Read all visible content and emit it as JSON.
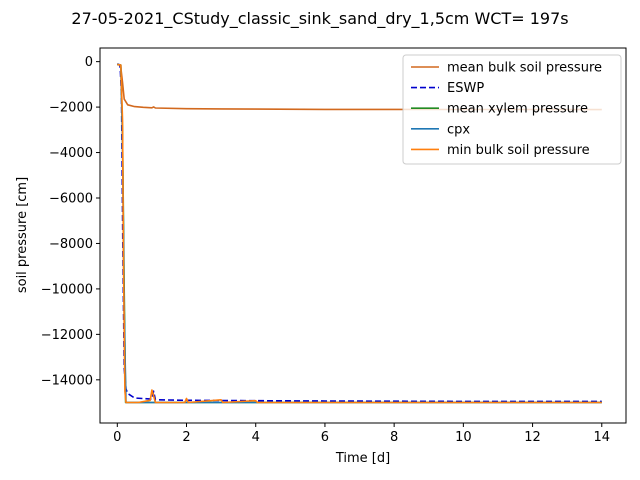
{
  "chart_data": {
    "type": "line",
    "title": "27-05-2021_CStudy_classic_sink_sand_dry_1,5cm  WCT= 197s",
    "xlabel": "Time [d]",
    "ylabel": "soil pressure [cm]",
    "xlim": [
      -0.5,
      14.7
    ],
    "ylim": [
      -15900,
      600
    ],
    "xticks": [
      0,
      2,
      4,
      6,
      8,
      10,
      12,
      14
    ],
    "yticks": [
      0,
      -2000,
      -4000,
      -6000,
      -8000,
      -10000,
      -12000,
      -14000
    ],
    "xtick_labels": [
      "0",
      "2",
      "4",
      "6",
      "8",
      "10",
      "12",
      "14"
    ],
    "ytick_labels": [
      "0",
      "−2000",
      "−4000",
      "−6000",
      "−8000",
      "−10000",
      "−12000",
      "−14000"
    ],
    "grid": false,
    "legend_position": "top-right",
    "series": [
      {
        "name": "mean bulk soil pressure",
        "color": "#d2691e",
        "style": "solid",
        "x": [
          0,
          0.05,
          0.1,
          0.15,
          0.2,
          0.3,
          0.5,
          0.75,
          1.0,
          1.05,
          1.1,
          2,
          3,
          4,
          6,
          8,
          10,
          12,
          14
        ],
        "y": [
          -120,
          -140,
          -250,
          -900,
          -1650,
          -1900,
          -1980,
          -2010,
          -2030,
          -1990,
          -2040,
          -2070,
          -2080,
          -2090,
          -2100,
          -2100,
          -2105,
          -2105,
          -2110
        ]
      },
      {
        "name": "ESWP",
        "color": "#0000cd",
        "style": "dashed",
        "x": [
          0,
          0.08,
          0.12,
          0.16,
          0.2,
          0.25,
          0.3,
          0.5,
          1.0,
          1.05,
          1.1,
          2,
          3,
          4,
          6,
          8,
          10,
          12,
          14
        ],
        "y": [
          -100,
          -150,
          -1500,
          -8000,
          -13500,
          -14400,
          -14600,
          -14800,
          -14850,
          -14500,
          -14880,
          -14900,
          -14910,
          -14920,
          -14930,
          -14940,
          -14950,
          -14950,
          -14950
        ]
      },
      {
        "name": "mean xylem pressure",
        "color": "#228b22",
        "style": "solid",
        "x": [
          0,
          0.1,
          0.15,
          0.2,
          0.24,
          0.3,
          1,
          14
        ],
        "y": [
          -120,
          -150,
          -3000,
          -10000,
          -15000,
          -15000,
          -15000,
          -15000
        ]
      },
      {
        "name": "cpx",
        "color": "#1f77b4",
        "style": "solid",
        "x": [
          0,
          0.1,
          0.15,
          0.2,
          0.25,
          0.3,
          1,
          14
        ],
        "y": [
          -120,
          -150,
          -3500,
          -11000,
          -15000,
          -15000,
          -15000,
          -15000
        ]
      },
      {
        "name": "min bulk soil pressure",
        "color": "#ff7f0e",
        "style": "solid",
        "x": [
          0,
          0.1,
          0.15,
          0.18,
          0.22,
          0.25,
          0.3,
          0.6,
          0.95,
          1.0,
          1.05,
          1.1,
          1.95,
          2.0,
          2.05,
          3.0,
          3.05,
          4.0,
          4.05,
          5,
          6,
          7,
          8,
          9,
          10,
          11,
          12,
          13,
          14
        ],
        "y": [
          -120,
          -150,
          -2500,
          -9000,
          -14500,
          -15000,
          -15000,
          -15000,
          -14900,
          -14450,
          -14700,
          -15000,
          -15000,
          -14820,
          -15000,
          -14880,
          -15000,
          -14920,
          -15000,
          -15000,
          -15000,
          -15000,
          -15000,
          -15000,
          -15000,
          -15000,
          -15000,
          -15000,
          -15000
        ]
      }
    ]
  }
}
